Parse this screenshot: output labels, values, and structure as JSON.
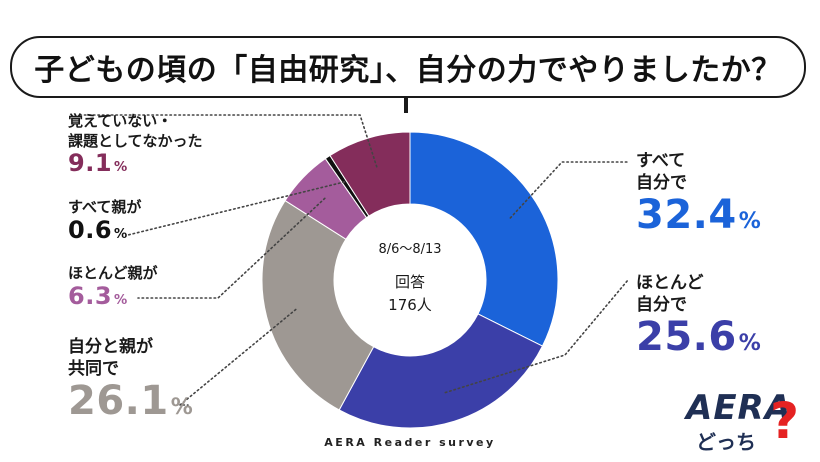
{
  "header": {
    "title": "子どもの頃の「自由研究」、自分の力でやりましたか？"
  },
  "chart_data": {
    "type": "pie",
    "donut": true,
    "period": "8/6～8/13",
    "respondents_label": "回答",
    "respondents": "176人",
    "slices": [
      {
        "label": "すべて自分で",
        "line1": "すべて",
        "line2": "自分で",
        "value": 32.4,
        "color": "#1b63d9"
      },
      {
        "label": "ほとんど自分で",
        "line1": "ほとんど",
        "line2": "自分で",
        "value": 25.6,
        "color": "#3b3fa8"
      },
      {
        "label": "自分と親が共同で",
        "line1": "自分と親が",
        "line2": "共同で",
        "value": 26.1,
        "color": "#9e9893"
      },
      {
        "label": "ほとんど親が",
        "line1": "ほとんど親が",
        "value": 6.3,
        "color": "#a45c9c"
      },
      {
        "label": "すべて親が",
        "line1": "すべて親が",
        "value": 0.6,
        "color": "#111111"
      },
      {
        "label": "覚えていない・課題としてなかった",
        "line1": "覚えていない・",
        "line2": "課題としてなかった",
        "value": 9.1,
        "color": "#842d5b"
      }
    ],
    "value_suffix": "%"
  },
  "footer": {
    "source": "AERA Reader survey"
  },
  "logo": {
    "brand": "AERA",
    "sub": "どっち",
    "mark": "?"
  }
}
